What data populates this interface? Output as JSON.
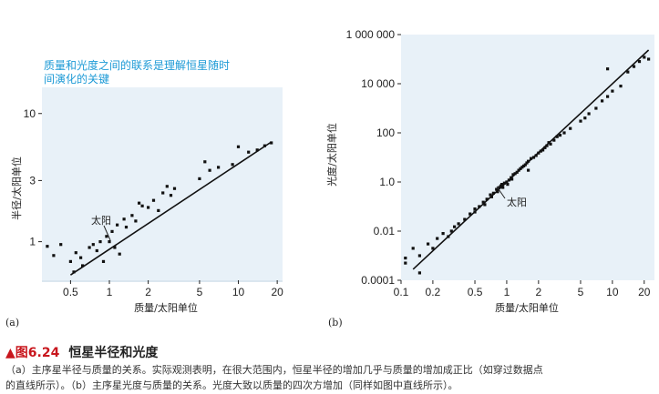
{
  "chart_data": [
    {
      "panel": "(a)",
      "type": "scatter",
      "xscale": "log",
      "yscale": "log",
      "xlabel": "质量/太阳单位",
      "ylabel": "半径/太阳单位",
      "xlim": [
        0.3,
        22
      ],
      "ylim": [
        0.5,
        16
      ],
      "xticks": [
        0.5,
        1,
        2,
        5,
        10,
        20
      ],
      "xtick_labels": [
        "0.5",
        "1",
        "2",
        "5",
        "10",
        "20"
      ],
      "yticks": [
        1,
        3,
        10
      ],
      "ytick_labels": [
        "1",
        "3",
        "10"
      ],
      "note": "质量和光度之间的联系是理解恒星随时间演化的关键",
      "annotation": {
        "text": "太阳",
        "x": 1,
        "y": 1
      },
      "fit_line": {
        "x": [
          0.5,
          18
        ],
        "y": [
          0.55,
          6.0
        ]
      },
      "points": [
        [
          0.33,
          0.92
        ],
        [
          0.37,
          0.78
        ],
        [
          0.42,
          0.95
        ],
        [
          0.5,
          0.7
        ],
        [
          0.53,
          0.58
        ],
        [
          0.55,
          0.82
        ],
        [
          0.6,
          0.75
        ],
        [
          0.62,
          0.65
        ],
        [
          0.7,
          0.9
        ],
        [
          0.75,
          0.95
        ],
        [
          0.8,
          0.85
        ],
        [
          0.85,
          1.0
        ],
        [
          0.9,
          0.7
        ],
        [
          0.95,
          1.1
        ],
        [
          1.0,
          1.0
        ],
        [
          1.05,
          1.2
        ],
        [
          1.1,
          0.9
        ],
        [
          1.15,
          1.35
        ],
        [
          1.2,
          0.8
        ],
        [
          1.3,
          1.5
        ],
        [
          1.35,
          1.3
        ],
        [
          1.5,
          1.6
        ],
        [
          1.6,
          1.45
        ],
        [
          1.7,
          2.0
        ],
        [
          1.8,
          1.9
        ],
        [
          2.0,
          1.85
        ],
        [
          2.2,
          2.1
        ],
        [
          2.4,
          1.75
        ],
        [
          2.6,
          2.4
        ],
        [
          2.8,
          2.7
        ],
        [
          3.0,
          2.3
        ],
        [
          3.2,
          2.6
        ],
        [
          5.0,
          3.1
        ],
        [
          5.5,
          4.2
        ],
        [
          6.0,
          3.6
        ],
        [
          7.0,
          3.8
        ],
        [
          9.0,
          4.0
        ],
        [
          10.0,
          5.5
        ],
        [
          12.0,
          5.0
        ],
        [
          14.0,
          5.2
        ],
        [
          16.0,
          5.6
        ],
        [
          18.0,
          5.9
        ]
      ]
    },
    {
      "panel": "(b)",
      "type": "scatter",
      "xscale": "log",
      "yscale": "log",
      "xlabel": "质量/太阳单位",
      "ylabel": "光度/太阳单位",
      "xlim": [
        0.1,
        25
      ],
      "ylim": [
        0.0001,
        1000000
      ],
      "xticks": [
        0.1,
        0.2,
        0.5,
        1,
        2,
        5,
        10,
        20
      ],
      "xtick_labels": [
        "0.1",
        "0.2",
        "0.5",
        "1",
        "2",
        "5",
        "10",
        "20"
      ],
      "yticks": [
        0.0001,
        0.01,
        1,
        100,
        10000,
        1000000
      ],
      "ytick_labels": [
        "0.0001",
        "0.01",
        "1.0",
        "100",
        "10 000",
        "1 000 000"
      ],
      "annotation": {
        "text": "太阳",
        "x": 1,
        "y": 1
      },
      "fit_line": {
        "x": [
          0.13,
          22
        ],
        "y": [
          0.00028,
          234000
        ]
      },
      "points": [
        [
          0.11,
          0.0005
        ],
        [
          0.11,
          0.0008
        ],
        [
          0.13,
          0.002
        ],
        [
          0.15,
          0.001
        ],
        [
          0.18,
          0.003
        ],
        [
          0.2,
          0.002
        ],
        [
          0.22,
          0.005
        ],
        [
          0.25,
          0.008
        ],
        [
          0.28,
          0.006
        ],
        [
          0.3,
          0.01
        ],
        [
          0.32,
          0.015
        ],
        [
          0.35,
          0.02
        ],
        [
          0.4,
          0.03
        ],
        [
          0.45,
          0.05
        ],
        [
          0.5,
          0.08
        ],
        [
          0.5,
          0.06
        ],
        [
          0.55,
          0.1
        ],
        [
          0.6,
          0.15
        ],
        [
          0.62,
          0.12
        ],
        [
          0.65,
          0.2
        ],
        [
          0.7,
          0.3
        ],
        [
          0.72,
          0.25
        ],
        [
          0.75,
          0.35
        ],
        [
          0.8,
          0.5
        ],
        [
          0.82,
          0.4
        ],
        [
          0.85,
          0.6
        ],
        [
          0.88,
          0.7
        ],
        [
          0.9,
          0.8
        ],
        [
          0.92,
          0.6
        ],
        [
          0.95,
          0.9
        ],
        [
          1.0,
          1.0
        ],
        [
          1.02,
          0.8
        ],
        [
          1.05,
          1.2
        ],
        [
          1.1,
          1.5
        ],
        [
          1.12,
          1.3
        ],
        [
          1.15,
          2.0
        ],
        [
          1.2,
          2.2
        ],
        [
          1.25,
          2.5
        ],
        [
          1.3,
          3.0
        ],
        [
          1.35,
          3.5
        ],
        [
          1.4,
          4.0
        ],
        [
          1.45,
          4.5
        ],
        [
          1.5,
          5.0
        ],
        [
          1.55,
          6.0
        ],
        [
          1.6,
          7.0
        ],
        [
          1.7,
          9.0
        ],
        [
          1.8,
          10.0
        ],
        [
          1.9,
          12.0
        ],
        [
          2.0,
          15.0
        ],
        [
          2.1,
          18.0
        ],
        [
          2.2,
          20.0
        ],
        [
          2.3,
          25.0
        ],
        [
          2.4,
          30.0
        ],
        [
          2.5,
          40.0
        ],
        [
          2.6,
          35.0
        ],
        [
          2.8,
          50.0
        ],
        [
          3.0,
          70.0
        ],
        [
          3.2,
          80.0
        ],
        [
          3.5,
          100.0
        ],
        [
          4.0,
          150.0
        ],
        [
          5.0,
          300.0
        ],
        [
          5.5,
          400.0
        ],
        [
          6.0,
          600.0
        ],
        [
          7.0,
          1000.0
        ],
        [
          8.0,
          2000.0
        ],
        [
          9.0,
          3000.0
        ],
        [
          10.0,
          5000.0
        ],
        [
          12.0,
          8000.0
        ],
        [
          14.0,
          30000.0
        ],
        [
          16.0,
          50000.0
        ],
        [
          18.0,
          80000.0
        ],
        [
          20.0,
          120000.0
        ],
        [
          22.0,
          100000.0
        ],
        [
          9.0,
          40000.0
        ],
        [
          0.15,
          0.0002
        ],
        [
          1.6,
          3.0
        ]
      ]
    }
  ],
  "caption": {
    "marker": "▲",
    "figure_number": "图6.24",
    "title": "恒星半径和光度",
    "line1": "（a）主序星半径与质量的关系。实际观测表明，在很大范围内，恒星半径的增加几乎与质量的增加成正比（如穿过数据点",
    "line2": "的直线所示）。（b）主序星光度与质量的关系。光度大致以质量的四次方增加（同样如图中直线所示）。"
  }
}
